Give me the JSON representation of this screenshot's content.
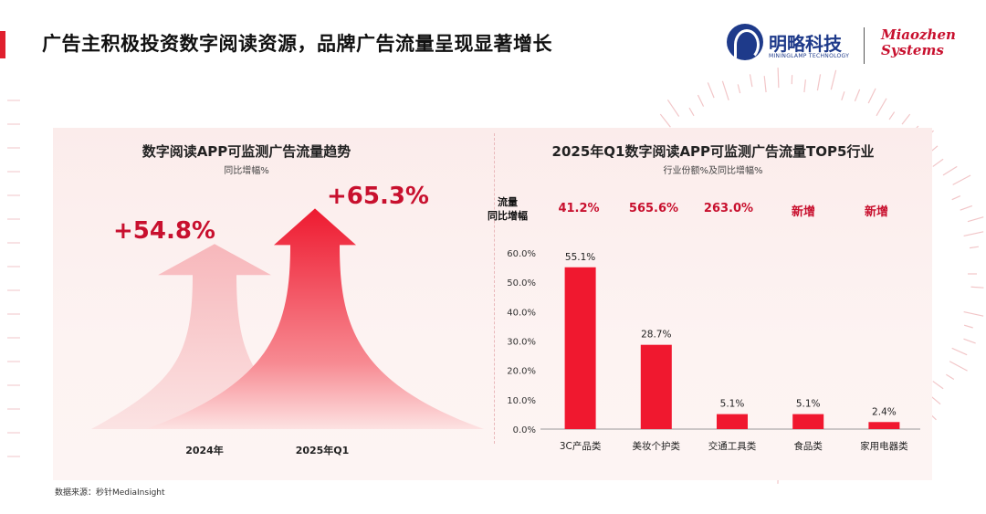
{
  "header": {
    "title": "广告主积极投资数字阅读资源，品牌广告流量呈现显著增长",
    "logo_cn": "明略科技",
    "logo_en": "MININGLAMP TECHNOLOGY",
    "logo_mz_line1": "Miaozhen",
    "logo_mz_line2": "Systems"
  },
  "colors": {
    "accent": "#e0202e",
    "bar": "#f0182f",
    "growth_text": "#c8102e",
    "arrow_light": "#f4a6ab",
    "arrow_strong": "#f0182f"
  },
  "left_chart": {
    "title": "数字阅读APP可监测广告流量趋势",
    "subtitle": "同比增幅%",
    "items": [
      {
        "label": "2024年",
        "value_text": "+54.8%",
        "value": 54.8
      },
      {
        "label": "2025年Q1",
        "value_text": "+65.3%",
        "value": 65.3
      }
    ]
  },
  "right_chart": {
    "title": "2025年Q1数字阅读APP可监测广告流量TOP5行业",
    "subtitle": "行业份额%及同比增幅%",
    "growth_header_line1": "流量",
    "growth_header_line2": "同比增幅",
    "growth": [
      "41.2%",
      "565.6%",
      "263.0%",
      "新增",
      "新增"
    ]
  },
  "chart_data": [
    {
      "type": "bar",
      "title": "数字阅读APP可监测广告流量趋势",
      "subtitle": "同比增幅%",
      "categories": [
        "2024年",
        "2025年Q1"
      ],
      "values": [
        54.8,
        65.3
      ],
      "data_labels": [
        "+54.8%",
        "+65.3%"
      ]
    },
    {
      "type": "bar",
      "title": "2025年Q1数字阅读APP可监测广告流量TOP5行业",
      "subtitle": "行业份额%及同比增幅%",
      "categories": [
        "3C产品类",
        "美妆个护类",
        "交通工具类",
        "食品类",
        "家用电器类"
      ],
      "values": [
        55.1,
        28.7,
        5.1,
        5.1,
        2.4
      ],
      "data_labels": [
        "55.1%",
        "28.7%",
        "5.1%",
        "5.1%",
        "2.4%"
      ],
      "ylim": [
        0,
        60
      ],
      "yticks": [
        "0.0%",
        "10.0%",
        "20.0%",
        "30.0%",
        "40.0%",
        "50.0%",
        "60.0%"
      ],
      "grid": false,
      "legend": "none"
    }
  ],
  "footer": {
    "source": "数据来源：秒针MediaInsight"
  }
}
